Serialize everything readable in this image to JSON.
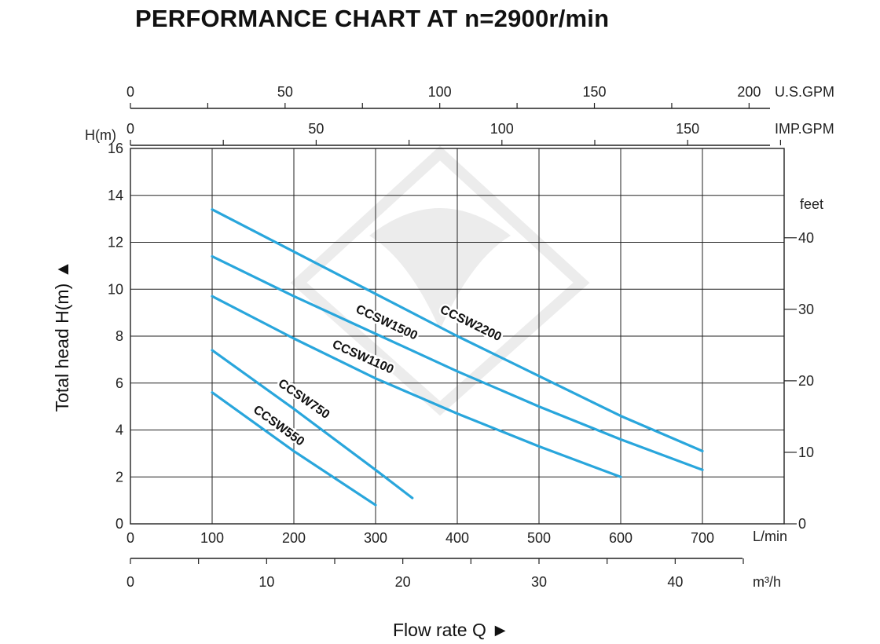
{
  "title": "PERFORMANCE CHART AT n=2900r/min",
  "colors": {
    "curve": "#29a6dc",
    "grid": "#222222",
    "watermark": "#ececec"
  },
  "chart_data": {
    "type": "line",
    "title": "PERFORMANCE CHART AT n=2900r/min",
    "xlabel": "Flow rate  Q",
    "ylabel": "Total  head H(m)",
    "xlim": [
      0,
      800
    ],
    "ylim": [
      0,
      16
    ],
    "grid": true,
    "x_unit": "L/min",
    "y_unit": "H(m)",
    "x_ticks": [
      "0",
      "100",
      "200",
      "300",
      "400",
      "500",
      "600",
      "700"
    ],
    "y_ticks": [
      "0",
      "2",
      "4",
      "6",
      "8",
      "10",
      "12",
      "14",
      "16"
    ],
    "secondary_axes": {
      "usgpm": {
        "unit": "U.S.GPM",
        "ticks": [
          "0",
          "50",
          "100",
          "150",
          "200"
        ]
      },
      "impgpm": {
        "unit": "IMP.GPM",
        "ticks": [
          "0",
          "50",
          "100",
          "150"
        ]
      },
      "m3h": {
        "unit": "m³/h",
        "ticks": [
          "0",
          "10",
          "20",
          "30",
          "40"
        ]
      },
      "feet": {
        "unit": "feet",
        "ticks": [
          "0",
          "10",
          "20",
          "30",
          "40"
        ]
      }
    },
    "series": [
      {
        "name": "CCSW2200",
        "x": [
          100,
          200,
          300,
          400,
          500,
          600,
          700
        ],
        "y": [
          13.4,
          11.6,
          9.8,
          8.0,
          6.3,
          4.6,
          3.1
        ]
      },
      {
        "name": "CCSW1500",
        "x": [
          100,
          200,
          300,
          400,
          500,
          600,
          700
        ],
        "y": [
          11.4,
          9.7,
          8.1,
          6.5,
          5.0,
          3.6,
          2.3
        ]
      },
      {
        "name": "CCSW1100",
        "x": [
          100,
          200,
          300,
          400,
          500,
          600
        ],
        "y": [
          9.7,
          7.9,
          6.2,
          4.7,
          3.3,
          2.0
        ]
      },
      {
        "name": "CCSW750",
        "x": [
          100,
          200,
          300,
          345
        ],
        "y": [
          7.4,
          4.9,
          2.3,
          1.1
        ]
      },
      {
        "name": "CCSW550",
        "x": [
          100,
          200,
          300
        ],
        "y": [
          5.6,
          3.1,
          0.8
        ]
      }
    ]
  }
}
